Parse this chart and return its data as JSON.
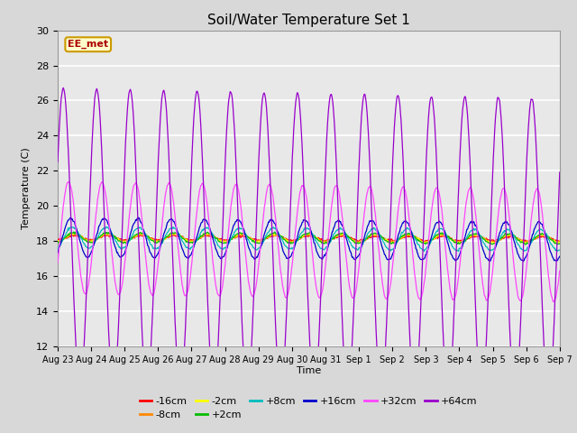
{
  "title": "Soil/Water Temperature Set 1",
  "xlabel": "Time",
  "ylabel": "Temperature (C)",
  "ylim": [
    12,
    30
  ],
  "yticks": [
    12,
    14,
    16,
    18,
    20,
    22,
    24,
    26,
    28,
    30
  ],
  "x_labels": [
    "Aug 23",
    "Aug 24",
    "Aug 25",
    "Aug 26",
    "Aug 27",
    "Aug 28",
    "Aug 29",
    "Aug 30",
    "Aug 31",
    "Sep 1",
    "Sep 2",
    "Sep 3",
    "Sep 4",
    "Sep 5",
    "Sep 6",
    "Sep 7"
  ],
  "watermark": "EE_met",
  "legend_entries": [
    {
      "label": "-16cm",
      "color": "#ff0000"
    },
    {
      "label": "-8cm",
      "color": "#ff8800"
    },
    {
      "label": "-2cm",
      "color": "#ffff00"
    },
    {
      "label": "+2cm",
      "color": "#00bb00"
    },
    {
      "label": "+8cm",
      "color": "#00bbbb"
    },
    {
      "label": "+16cm",
      "color": "#0000cc"
    },
    {
      "label": "+32cm",
      "color": "#ff44ff"
    },
    {
      "label": "+64cm",
      "color": "#9900cc"
    }
  ],
  "bg_color": "#d8d8d8",
  "plot_bg_color": "#e8e8e8",
  "n_days": 15,
  "points_per_day": 48,
  "base_temp": 18.2,
  "depths_params": [
    {
      "color": "#ff0000",
      "amplitude": 0.12,
      "phase": 0.0,
      "trend": -0.005
    },
    {
      "color": "#ff8800",
      "amplitude": 0.18,
      "phase": 0.05,
      "trend": -0.005
    },
    {
      "color": "#ffff00",
      "amplitude": 0.22,
      "phase": 0.1,
      "trend": -0.005
    },
    {
      "color": "#00bb00",
      "amplitude": 0.28,
      "phase": 0.15,
      "trend": -0.005
    },
    {
      "color": "#00bbbb",
      "amplitude": 0.6,
      "phase": 0.4,
      "trend": -0.01
    },
    {
      "color": "#0000cc",
      "amplitude": 1.1,
      "phase": 0.7,
      "trend": -0.015
    },
    {
      "color": "#ff44ff",
      "amplitude": 3.2,
      "phase": 1.1,
      "trend": -0.03
    },
    {
      "color": "#9900cc",
      "amplitude": 8.5,
      "phase": 2.1,
      "trend": -0.04
    }
  ]
}
